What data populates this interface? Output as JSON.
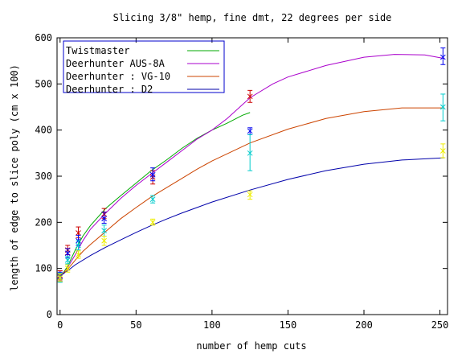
{
  "chart_data": {
    "type": "line",
    "title": "Slicing 3/8\" hemp, fine dmt, 22 degrees per side",
    "xlabel": "number of hemp cuts",
    "ylabel": "length of edge to slice poly (cm x 100)",
    "xlim": [
      -2,
      255
    ],
    "ylim": [
      0,
      600
    ],
    "xticks": [
      0,
      50,
      100,
      150,
      200,
      250
    ],
    "yticks": [
      0,
      100,
      200,
      300,
      400,
      500,
      600
    ],
    "grid": false,
    "legend_position": "top-left",
    "series": [
      {
        "name": "Twistmaster",
        "color": "#00aa00",
        "curve": [
          [
            0,
            84
          ],
          [
            2,
            90
          ],
          [
            5,
            105
          ],
          [
            10,
            140
          ],
          [
            15,
            170
          ],
          [
            20,
            193
          ],
          [
            30,
            230
          ],
          [
            40,
            258
          ],
          [
            50,
            285
          ],
          [
            60,
            312
          ],
          [
            70,
            335
          ],
          [
            80,
            360
          ],
          [
            90,
            382
          ],
          [
            100,
            400
          ],
          [
            110,
            415
          ],
          [
            120,
            432
          ],
          [
            125,
            438
          ]
        ],
        "points": [
          {
            "x": 0,
            "y": 85,
            "lo": 75,
            "hi": 95
          },
          {
            "x": 5,
            "y": 140,
            "lo": 130,
            "hi": 150
          },
          {
            "x": 12,
            "y": 177,
            "lo": 167,
            "hi": 190
          },
          {
            "x": 29,
            "y": 218,
            "lo": 208,
            "hi": 230
          },
          {
            "x": 61,
            "y": 298,
            "lo": 283,
            "hi": 312
          },
          {
            "x": 125,
            "y": 473,
            "lo": 460,
            "hi": 486
          }
        ]
      },
      {
        "name": "Deerhunter AUS-8A",
        "color": "#aa00cc",
        "curve": [
          [
            0,
            83
          ],
          [
            2,
            88
          ],
          [
            5,
            102
          ],
          [
            10,
            130
          ],
          [
            15,
            160
          ],
          [
            20,
            185
          ],
          [
            30,
            220
          ],
          [
            40,
            252
          ],
          [
            50,
            280
          ],
          [
            60,
            305
          ],
          [
            70,
            330
          ],
          [
            80,
            355
          ],
          [
            90,
            380
          ],
          [
            100,
            400
          ],
          [
            110,
            425
          ],
          [
            125,
            470
          ],
          [
            140,
            500
          ],
          [
            150,
            515
          ],
          [
            175,
            540
          ],
          [
            200,
            558
          ],
          [
            220,
            564
          ],
          [
            240,
            563
          ],
          [
            253,
            555
          ]
        ],
        "points": [
          {
            "x": 0,
            "y": 82,
            "lo": 72,
            "hi": 92
          },
          {
            "x": 5,
            "y": 133,
            "lo": 123,
            "hi": 143
          },
          {
            "x": 12,
            "y": 160,
            "lo": 150,
            "hi": 172
          },
          {
            "x": 29,
            "y": 208,
            "lo": 198,
            "hi": 222
          },
          {
            "x": 61,
            "y": 303,
            "lo": 290,
            "hi": 318
          },
          {
            "x": 125,
            "y": 398,
            "lo": 390,
            "hi": 405
          },
          {
            "x": 252,
            "y": 558,
            "lo": 542,
            "hi": 578
          }
        ]
      },
      {
        "name": "Deerhunter : VG-10",
        "color": "#cc4400",
        "curve": [
          [
            0,
            84
          ],
          [
            5,
            98
          ],
          [
            10,
            118
          ],
          [
            15,
            137
          ],
          [
            20,
            152
          ],
          [
            30,
            180
          ],
          [
            40,
            208
          ],
          [
            50,
            232
          ],
          [
            60,
            255
          ],
          [
            70,
            275
          ],
          [
            80,
            295
          ],
          [
            90,
            315
          ],
          [
            100,
            333
          ],
          [
            125,
            372
          ],
          [
            150,
            402
          ],
          [
            175,
            425
          ],
          [
            200,
            440
          ],
          [
            225,
            448
          ],
          [
            253,
            448
          ]
        ],
        "points": [
          {
            "x": 0,
            "y": 80,
            "lo": 70,
            "hi": 90
          },
          {
            "x": 5,
            "y": 118,
            "lo": 110,
            "hi": 126
          },
          {
            "x": 12,
            "y": 150,
            "lo": 140,
            "hi": 160
          },
          {
            "x": 29,
            "y": 182,
            "lo": 170,
            "hi": 194
          },
          {
            "x": 61,
            "y": 250,
            "lo": 242,
            "hi": 258
          },
          {
            "x": 125,
            "y": 350,
            "lo": 312,
            "hi": 390
          },
          {
            "x": 252,
            "y": 450,
            "lo": 420,
            "hi": 478
          }
        ]
      },
      {
        "name": "Deerhunter : D2",
        "color": "#0000aa",
        "curve": [
          [
            0,
            84
          ],
          [
            5,
            95
          ],
          [
            10,
            108
          ],
          [
            20,
            128
          ],
          [
            30,
            146
          ],
          [
            40,
            162
          ],
          [
            50,
            178
          ],
          [
            60,
            193
          ],
          [
            70,
            207
          ],
          [
            80,
            220
          ],
          [
            90,
            232
          ],
          [
            100,
            244
          ],
          [
            125,
            270
          ],
          [
            150,
            293
          ],
          [
            175,
            312
          ],
          [
            200,
            326
          ],
          [
            225,
            335
          ],
          [
            253,
            340
          ]
        ],
        "points": [
          {
            "x": 0,
            "y": 80,
            "lo": 72,
            "hi": 88
          },
          {
            "x": 5,
            "y": 100,
            "lo": 92,
            "hi": 108
          },
          {
            "x": 12,
            "y": 130,
            "lo": 122,
            "hi": 138
          },
          {
            "x": 29,
            "y": 160,
            "lo": 150,
            "hi": 170
          },
          {
            "x": 61,
            "y": 200,
            "lo": 194,
            "hi": 207
          },
          {
            "x": 125,
            "y": 260,
            "lo": 250,
            "hi": 268
          },
          {
            "x": 252,
            "y": 355,
            "lo": 340,
            "hi": 370
          }
        ]
      }
    ],
    "marker_colors": [
      "#cc0000",
      "#0000ee",
      "#00cccc",
      "#eeee00"
    ]
  }
}
